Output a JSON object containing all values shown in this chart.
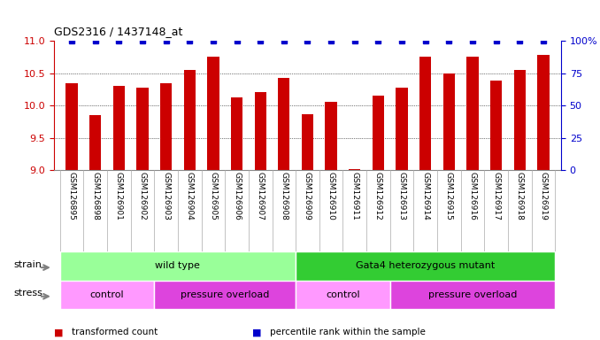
{
  "title": "GDS2316 / 1437148_at",
  "samples": [
    "GSM126895",
    "GSM126898",
    "GSM126901",
    "GSM126902",
    "GSM126903",
    "GSM126904",
    "GSM126905",
    "GSM126906",
    "GSM126907",
    "GSM126908",
    "GSM126909",
    "GSM126910",
    "GSM126911",
    "GSM126912",
    "GSM126913",
    "GSM126914",
    "GSM126915",
    "GSM126916",
    "GSM126917",
    "GSM126918",
    "GSM126919"
  ],
  "transformed_count": [
    10.35,
    9.85,
    10.3,
    10.28,
    10.35,
    10.55,
    10.75,
    10.12,
    10.2,
    10.43,
    9.87,
    10.05,
    9.01,
    10.15,
    10.28,
    10.75,
    10.5,
    10.75,
    10.38,
    10.55,
    10.78
  ],
  "percentile_rank": [
    100,
    100,
    100,
    100,
    100,
    100,
    100,
    100,
    100,
    100,
    100,
    100,
    100,
    100,
    100,
    100,
    100,
    100,
    100,
    100,
    100
  ],
  "ylim_left": [
    9,
    11
  ],
  "ylim_right": [
    0,
    100
  ],
  "yticks_left": [
    9,
    9.5,
    10,
    10.5,
    11
  ],
  "yticks_right": [
    0,
    25,
    50,
    75,
    100
  ],
  "bar_color": "#cc0000",
  "dot_color": "#0000cc",
  "bar_width": 0.5,
  "strain_groups": [
    {
      "label": "wild type",
      "start": 0,
      "end": 10,
      "color": "#99ff99"
    },
    {
      "label": "Gata4 heterozygous mutant",
      "start": 10,
      "end": 21,
      "color": "#33cc33"
    }
  ],
  "stress_groups": [
    {
      "label": "control",
      "start": 0,
      "end": 4,
      "color": "#ff99ff"
    },
    {
      "label": "pressure overload",
      "start": 4,
      "end": 10,
      "color": "#dd44dd"
    },
    {
      "label": "control",
      "start": 10,
      "end": 14,
      "color": "#ff99ff"
    },
    {
      "label": "pressure overload",
      "start": 14,
      "end": 21,
      "color": "#dd44dd"
    }
  ],
  "legend_items": [
    {
      "label": "transformed count",
      "color": "#cc0000"
    },
    {
      "label": "percentile rank within the sample",
      "color": "#0000cc"
    }
  ],
  "bg_color": "#ffffff",
  "tick_label_area_color": "#cccccc",
  "left_axis_color": "#cc0000",
  "right_axis_color": "#0000cc"
}
